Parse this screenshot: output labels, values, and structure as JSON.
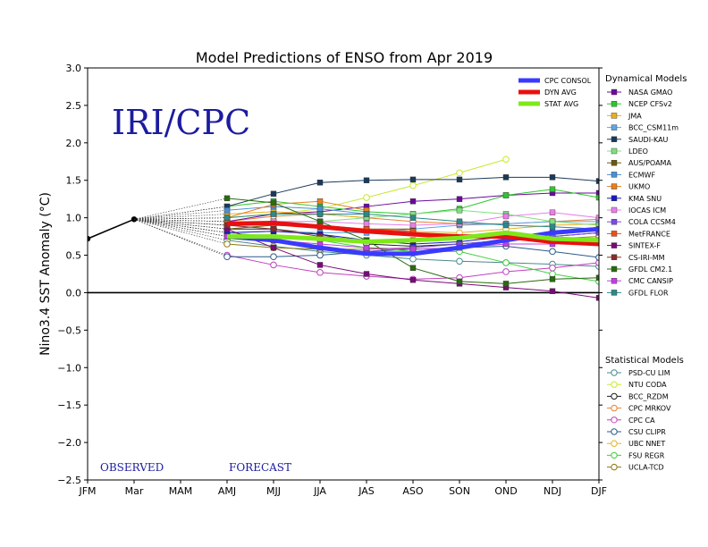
{
  "chart_data": {
    "type": "line",
    "title": "Model Predictions of ENSO from Apr 2019",
    "ylabel": "Nino3.4 SST Anomaly (°C)",
    "xlabel": "",
    "watermark": "IRI/CPC",
    "observed_label": "OBSERVED",
    "forecast_label": "FORECAST",
    "categories": [
      "JFM",
      "Mar",
      "MAM",
      "AMJ",
      "MJJ",
      "JJA",
      "JAS",
      "ASO",
      "SON",
      "OND",
      "NDJ",
      "DJF"
    ],
    "ylim": [
      -2.5,
      3.0
    ],
    "yticks": [
      "3.0",
      "2.5",
      "2.0",
      "1.5",
      "1.0",
      "0.5",
      "0.0",
      "−0.5",
      "−1.0",
      "−1.5",
      "−2.0",
      "−2.5"
    ],
    "grid": false,
    "observed": {
      "x_index": [
        0,
        1
      ],
      "values": [
        0.72,
        0.98
      ]
    },
    "consensus": [
      {
        "name": "CPC CONSOL",
        "color": "#3a3aff",
        "values": [
          0.75,
          0.7,
          0.6,
          0.52,
          0.52,
          0.6,
          0.7,
          0.8,
          0.85
        ]
      },
      {
        "name": "DYN AVG",
        "color": "#e81010",
        "values": [
          0.92,
          0.93,
          0.88,
          0.82,
          0.78,
          0.75,
          0.75,
          0.68,
          0.65
        ]
      },
      {
        "name": "STAT AVG",
        "color": "#7fe81a",
        "values": [
          0.75,
          0.75,
          0.72,
          0.68,
          0.7,
          0.73,
          0.8,
          0.72,
          0.7
        ]
      }
    ],
    "dynamical_header": "Dynamical Models",
    "statistical_header": "Statistical Models",
    "dynamical": [
      {
        "name": "NASA GMAO",
        "color": "#6a0a9c",
        "marker": "square",
        "values": [
          0.95,
          1.05,
          1.08,
          1.15,
          1.22,
          1.25,
          1.3,
          1.33,
          1.33
        ]
      },
      {
        "name": "NCEP CFSv2",
        "color": "#2cc82c",
        "marker": "square",
        "values": [
          1.15,
          1.22,
          1.15,
          1.08,
          1.05,
          1.12,
          1.3,
          1.38,
          1.27
        ]
      },
      {
        "name": "JMA",
        "color": "#e8b020",
        "marker": "square",
        "values": [
          1.05,
          1.08,
          1.05,
          1.0,
          null,
          null,
          null,
          null,
          null
        ]
      },
      {
        "name": "BCC_CSM11m",
        "color": "#5aa8e8",
        "marker": "square",
        "values": [
          0.8,
          0.82,
          0.8,
          0.8,
          0.85,
          0.9,
          0.92,
          0.95,
          0.95
        ]
      },
      {
        "name": "SAUDI-KAU",
        "color": "#1a3a5a",
        "marker": "square",
        "values": [
          1.15,
          1.32,
          1.47,
          1.5,
          1.51,
          1.51,
          1.54,
          1.54,
          1.49
        ]
      },
      {
        "name": "LDEO",
        "color": "#7fe07f",
        "marker": "square",
        "values": [
          0.9,
          0.95,
          0.95,
          1.0,
          1.05,
          1.1,
          1.05,
          0.95,
          0.9
        ]
      },
      {
        "name": "AUS/POAMA",
        "color": "#6a5a10",
        "marker": "square",
        "values": [
          0.85,
          0.9,
          0.88,
          0.85,
          0.85,
          null,
          null,
          null,
          null
        ]
      },
      {
        "name": "ECMWF",
        "color": "#4a90d8",
        "marker": "square",
        "values": [
          1.1,
          1.15,
          1.12,
          1.05,
          null,
          null,
          null,
          null,
          null
        ]
      },
      {
        "name": "UKMO",
        "color": "#e88020",
        "marker": "square",
        "values": [
          1.0,
          1.18,
          1.22,
          1.1,
          null,
          null,
          null,
          null,
          null
        ]
      },
      {
        "name": "KMA SNU",
        "color": "#1a1ac0",
        "marker": "square",
        "values": [
          0.8,
          0.82,
          0.78,
          0.7,
          0.65,
          0.68,
          0.75,
          0.8,
          0.85
        ]
      },
      {
        "name": "IOCAS ICM",
        "color": "#e880e8",
        "marker": "square",
        "values": [
          0.9,
          0.95,
          0.95,
          0.92,
          0.9,
          0.92,
          1.02,
          1.07,
          1.0
        ]
      },
      {
        "name": "COLA CCSM4",
        "color": "#7a4ae8",
        "marker": "square",
        "values": [
          0.75,
          0.7,
          0.6,
          0.55,
          0.6,
          0.65,
          0.7,
          0.75,
          0.8
        ]
      },
      {
        "name": "MetFRANCE",
        "color": "#f05010",
        "marker": "square",
        "values": [
          0.95,
          0.92,
          0.9,
          0.85,
          0.82,
          null,
          null,
          null,
          null
        ]
      },
      {
        "name": "SINTEX-F",
        "color": "#7a0a7a",
        "marker": "square",
        "values": [
          0.85,
          0.6,
          0.37,
          0.25,
          0.17,
          0.12,
          0.07,
          0.02,
          -0.07
        ]
      },
      {
        "name": "CS-IRI-MM",
        "color": "#8a2a2a",
        "marker": "square",
        "values": [
          0.9,
          0.85,
          0.75,
          0.7,
          0.7,
          null,
          null,
          null,
          null
        ]
      },
      {
        "name": "GFDL CM2.1",
        "color": "#2a6a10",
        "marker": "square",
        "values": [
          1.26,
          1.2,
          0.95,
          0.7,
          0.33,
          0.15,
          0.12,
          0.18,
          0.2
        ]
      },
      {
        "name": "CMC CANSIP",
        "color": "#c040e0",
        "marker": "square",
        "values": [
          0.75,
          0.7,
          0.65,
          0.6,
          0.58,
          0.6,
          0.65,
          0.65,
          0.7
        ]
      },
      {
        "name": "GFDL FLOR",
        "color": "#2a8a8a",
        "marker": "square",
        "values": [
          1.0,
          1.05,
          1.05,
          1.05,
          1.0,
          0.95,
          0.9,
          0.88,
          0.85
        ]
      }
    ],
    "statistical": [
      {
        "name": "PSD-CU LIM",
        "color": "#4a8a8a",
        "marker": "circle",
        "values": [
          0.7,
          0.62,
          0.55,
          0.5,
          0.45,
          0.42,
          0.4,
          0.38,
          0.35
        ]
      },
      {
        "name": "NTU CODA",
        "color": "#c8e830",
        "marker": "circle",
        "values": [
          1.0,
          1.05,
          1.12,
          1.27,
          1.43,
          1.6,
          1.78,
          null,
          null
        ]
      },
      {
        "name": "BCC_RZDM",
        "color": "#202020",
        "marker": "circle",
        "values": [
          0.85,
          0.85,
          0.78,
          0.65,
          0.62,
          0.65,
          0.7,
          0.75,
          0.8
        ]
      },
      {
        "name": "CPC MRKOV",
        "color": "#e88030",
        "marker": "circle",
        "values": [
          0.95,
          1.02,
          1.05,
          1.0,
          0.95,
          0.92,
          0.92,
          0.95,
          0.98
        ]
      },
      {
        "name": "CPC CA",
        "color": "#c040c0",
        "marker": "circle",
        "values": [
          0.5,
          0.37,
          0.27,
          0.22,
          0.18,
          0.2,
          0.28,
          0.33,
          0.4
        ]
      },
      {
        "name": "CSU CLIPR",
        "color": "#2a5a8a",
        "marker": "circle",
        "values": [
          0.48,
          0.48,
          0.5,
          0.55,
          0.58,
          0.6,
          0.62,
          0.55,
          0.47
        ]
      },
      {
        "name": "UBC NNET",
        "color": "#e8b020",
        "marker": "circle",
        "values": [
          0.9,
          0.9,
          0.88,
          0.85,
          0.82,
          0.8,
          0.85,
          0.9,
          0.92
        ]
      },
      {
        "name": "FSU REGR",
        "color": "#40d040",
        "marker": "circle",
        "values": [
          0.8,
          0.75,
          0.7,
          0.6,
          0.55,
          0.55,
          0.4,
          0.25,
          0.15
        ]
      },
      {
        "name": "UCLA-TCD",
        "color": "#8a7a10",
        "marker": "circle",
        "values": [
          0.65,
          0.6,
          0.58,
          0.58,
          0.6,
          0.65,
          0.7,
          0.72,
          0.75
        ]
      }
    ]
  }
}
